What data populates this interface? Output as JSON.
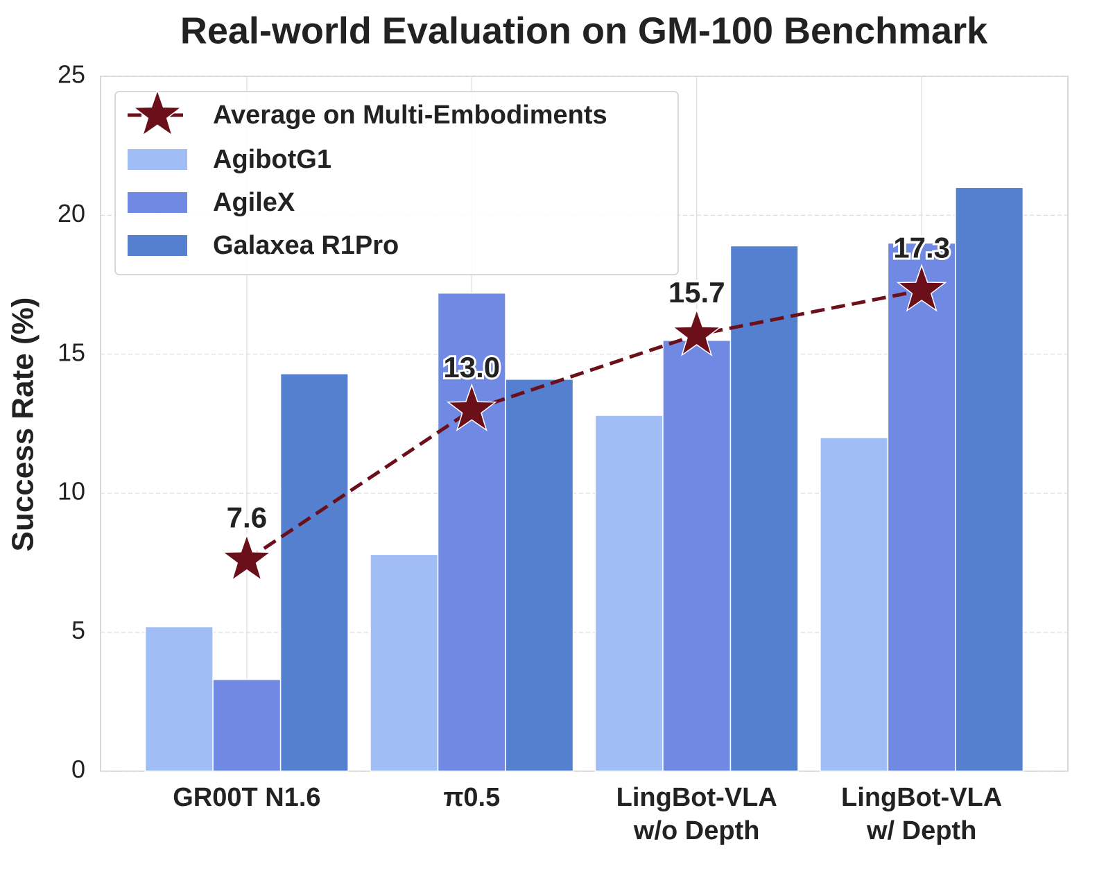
{
  "chart_data": {
    "type": "bar",
    "title": "Real-world Evaluation on GM-100 Benchmark",
    "y_label": "Success Rate (%)",
    "categories": [
      [
        "GR00T N1.6"
      ],
      [
        "π0.5"
      ],
      [
        "LingBot-VLA",
        "w/o Depth"
      ],
      [
        "LingBot-VLA",
        "w/ Depth"
      ]
    ],
    "series": [
      {
        "name": "AgibotG1",
        "color": "#a0bdf5",
        "values": [
          5.2,
          7.8,
          12.8,
          12.0
        ]
      },
      {
        "name": "AgileX",
        "color": "#7089e3",
        "values": [
          3.3,
          17.2,
          15.5,
          19.0
        ]
      },
      {
        "name": "Galaxea R1Pro",
        "color": "#5580cf",
        "values": [
          14.3,
          14.1,
          18.9,
          21.0
        ]
      }
    ],
    "line": {
      "type": "line",
      "name": "Average on Multi-Embodiments",
      "color": "#6b0f1a",
      "values": [
        7.6,
        13.0,
        15.7,
        17.3
      ],
      "value_labels": [
        "7.6",
        "13.0",
        "15.7",
        "17.3"
      ]
    },
    "ylim": [
      0,
      25
    ],
    "yticks": [
      0,
      5,
      10,
      15,
      20,
      25
    ],
    "grid": true,
    "legend": "upper left"
  }
}
